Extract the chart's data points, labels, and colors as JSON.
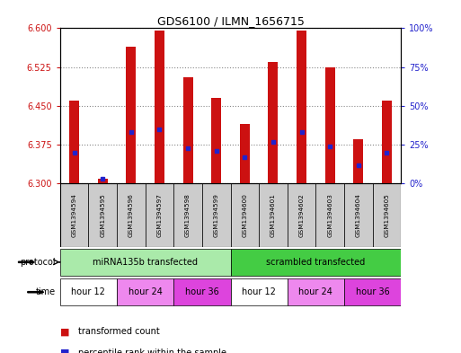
{
  "title": "GDS6100 / ILMN_1656715",
  "samples": [
    "GSM1394594",
    "GSM1394595",
    "GSM1394596",
    "GSM1394597",
    "GSM1394598",
    "GSM1394599",
    "GSM1394600",
    "GSM1394601",
    "GSM1394602",
    "GSM1394603",
    "GSM1394604",
    "GSM1394605"
  ],
  "transformed_count": [
    6.46,
    6.31,
    6.565,
    6.595,
    6.505,
    6.465,
    6.415,
    6.535,
    6.595,
    6.525,
    6.385,
    6.46
  ],
  "percentile_rank": [
    20,
    3,
    33,
    35,
    23,
    21,
    17,
    27,
    33,
    24,
    12,
    20
  ],
  "ylim": [
    6.3,
    6.6
  ],
  "yticks": [
    6.3,
    6.375,
    6.45,
    6.525,
    6.6
  ],
  "right_yticks": [
    0,
    25,
    50,
    75,
    100
  ],
  "protocol_groups": [
    {
      "label": "miRNA135b transfected",
      "start": 0,
      "end": 6,
      "color": "#aaeaaa"
    },
    {
      "label": "scrambled transfected",
      "start": 6,
      "end": 12,
      "color": "#44cc44"
    }
  ],
  "time_groups": [
    {
      "label": "hour 12",
      "start": 0,
      "end": 2,
      "color": "#ffffff"
    },
    {
      "label": "hour 24",
      "start": 2,
      "end": 4,
      "color": "#ee88ee"
    },
    {
      "label": "hour 36",
      "start": 4,
      "end": 6,
      "color": "#dd44dd"
    },
    {
      "label": "hour 12",
      "start": 6,
      "end": 8,
      "color": "#ffffff"
    },
    {
      "label": "hour 24",
      "start": 8,
      "end": 10,
      "color": "#ee88ee"
    },
    {
      "label": "hour 36",
      "start": 10,
      "end": 12,
      "color": "#dd44dd"
    }
  ],
  "bar_color": "#cc1111",
  "dot_color": "#2222cc",
  "bar_bottom": 6.3,
  "bar_width": 0.35,
  "sample_box_color": "#cccccc",
  "grid_color": "#888888",
  "left_axis_color": "#cc1111",
  "right_axis_color": "#2222cc",
  "bg_color": "#ffffff"
}
